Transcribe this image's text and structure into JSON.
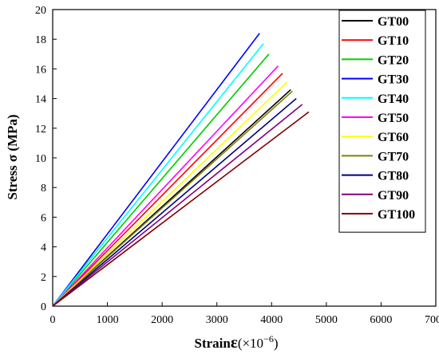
{
  "chart_data": {
    "type": "line",
    "title": "",
    "xlabel_main": "Strain",
    "xlabel_symbol": "ε",
    "xlabel_unit": "(×10",
    "xlabel_exp": "−6",
    "xlabel_close": ")",
    "ylabel": "Stress σ (MPa)",
    "xlim": [
      0,
      7000
    ],
    "ylim": [
      0,
      20
    ],
    "xticks": [
      0,
      1000,
      2000,
      3000,
      4000,
      5000,
      6000,
      7000
    ],
    "yticks": [
      0,
      2,
      4,
      6,
      8,
      10,
      12,
      14,
      16,
      18,
      20
    ],
    "grid": false,
    "legend_position": "top-right",
    "series": [
      {
        "name": "GT00",
        "color": "#000000",
        "x": [
          0,
          4350
        ],
        "y": [
          0,
          14.6
        ]
      },
      {
        "name": "GT10",
        "color": "#ff0000",
        "x": [
          0,
          4200
        ],
        "y": [
          0,
          15.7
        ]
      },
      {
        "name": "GT20",
        "color": "#00cc00",
        "x": [
          0,
          3950
        ],
        "y": [
          0,
          17.0
        ]
      },
      {
        "name": "GT30",
        "color": "#0000ff",
        "x": [
          0,
          3780
        ],
        "y": [
          0,
          18.4
        ]
      },
      {
        "name": "GT40",
        "color": "#00ffff",
        "x": [
          0,
          3850
        ],
        "y": [
          0,
          17.7
        ]
      },
      {
        "name": "GT50",
        "color": "#ff00ff",
        "x": [
          0,
          4120
        ],
        "y": [
          0,
          16.2
        ]
      },
      {
        "name": "GT60",
        "color": "#ffff00",
        "x": [
          0,
          4280
        ],
        "y": [
          0,
          15.1
        ]
      },
      {
        "name": "GT70",
        "color": "#808000",
        "x": [
          0,
          4380
        ],
        "y": [
          0,
          14.5
        ]
      },
      {
        "name": "GT80",
        "color": "#000080",
        "x": [
          0,
          4450
        ],
        "y": [
          0,
          14.0
        ]
      },
      {
        "name": "GT90",
        "color": "#800080",
        "x": [
          0,
          4560
        ],
        "y": [
          0,
          13.6
        ]
      },
      {
        "name": "GT100",
        "color": "#800000",
        "x": [
          0,
          4680
        ],
        "y": [
          0,
          13.1
        ]
      }
    ]
  }
}
